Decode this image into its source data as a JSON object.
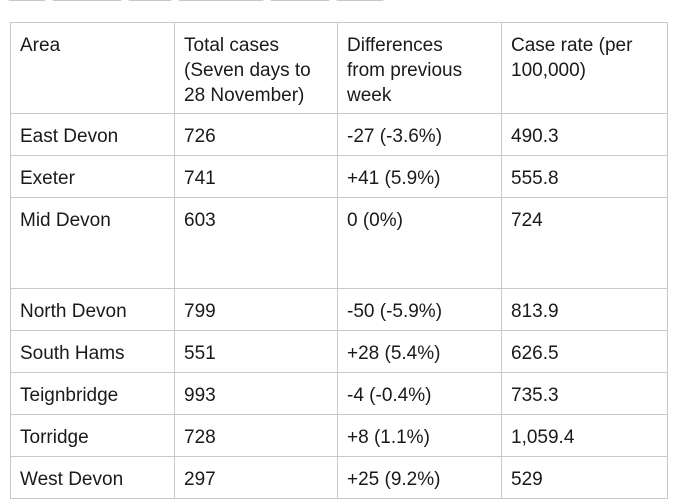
{
  "table": {
    "headers": [
      "Area",
      "Total cases\n(Seven days to\n28 November)",
      "Differences\nfrom previous\nweek",
      "Case rate (per\n100,000)"
    ],
    "rows": [
      [
        "East Devon",
        "726",
        "-27 (-3.6%)",
        "490.3"
      ],
      [
        "Exeter",
        "741",
        "+41 (5.9%)",
        "555.8"
      ],
      [
        "Mid Devon",
        "603",
        "0 (0%)",
        "724"
      ],
      [
        "North Devon",
        "799",
        "-50 (-5.9%)",
        "813.9"
      ],
      [
        "South Hams",
        "551",
        "+28 (5.4%)",
        "626.5"
      ],
      [
        "Teignbridge",
        "993",
        "-4 (-0.4%)",
        "735.3"
      ],
      [
        "Torridge",
        "728",
        "+8 (1.1%)",
        "1,059.4"
      ],
      [
        "West Devon",
        "297",
        "+25 (9.2%)",
        "529"
      ]
    ]
  }
}
